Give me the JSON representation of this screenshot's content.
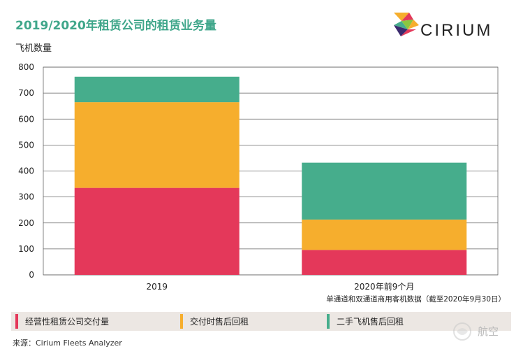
{
  "header": {
    "title": "2019/2020年租赁公司的租赁业务量",
    "brand": "CIRIUM"
  },
  "chart_data": {
    "type": "bar",
    "stacked": true,
    "ylabel": "飞机数量",
    "ylim": [
      0,
      800
    ],
    "yticks": [
      0,
      100,
      200,
      300,
      400,
      500,
      600,
      700,
      800
    ],
    "categories": [
      "2019",
      "2020年前9个月"
    ],
    "series": [
      {
        "name": "经营性租赁公司交付量",
        "color": "#e4385a",
        "values": [
          335,
          96
        ]
      },
      {
        "name": "交付时售后回租",
        "color": "#f6ae2d",
        "values": [
          330,
          117
        ]
      },
      {
        "name": "二手飞机售后回租",
        "color": "#46ad8c",
        "values": [
          98,
          219
        ]
      }
    ],
    "note": "单通道和双通道商用客机数据（截至2020年9月30日）",
    "grid": true,
    "legend_position": "bottom"
  },
  "footer": {
    "source": "来源：Cirium Fleets Analyzer",
    "watermark": "航空"
  }
}
